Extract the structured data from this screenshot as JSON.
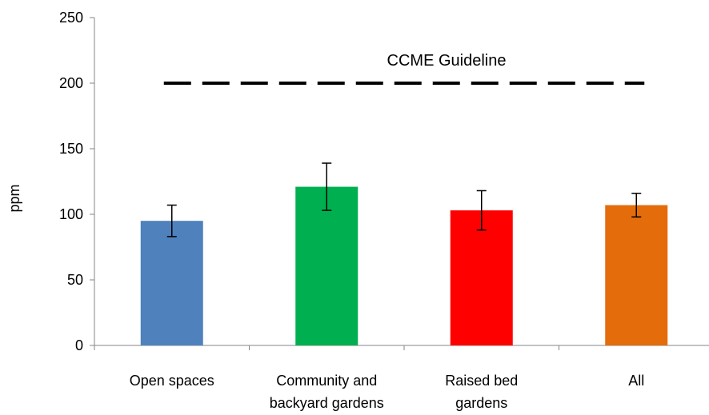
{
  "chart_data": {
    "type": "bar",
    "categories": [
      [
        "Open spaces"
      ],
      [
        "Community and",
        "backyard gardens"
      ],
      [
        "Raised bed",
        "gardens"
      ],
      [
        "All"
      ]
    ],
    "values": [
      95,
      121,
      103,
      107
    ],
    "error_low": [
      83,
      103,
      88,
      98
    ],
    "error_high": [
      107,
      139,
      118,
      116
    ],
    "colors": [
      "#4f81bd",
      "#00b050",
      "#ff0000",
      "#e46c0a"
    ],
    "ylabel": "ppm",
    "ylim": [
      0,
      250
    ],
    "yticks": [
      0,
      50,
      100,
      150,
      200,
      250
    ],
    "grid": false,
    "legend": "none",
    "reference_line": {
      "value": 200,
      "label": "CCME Guideline",
      "style": "dashed",
      "color": "#000000"
    }
  }
}
